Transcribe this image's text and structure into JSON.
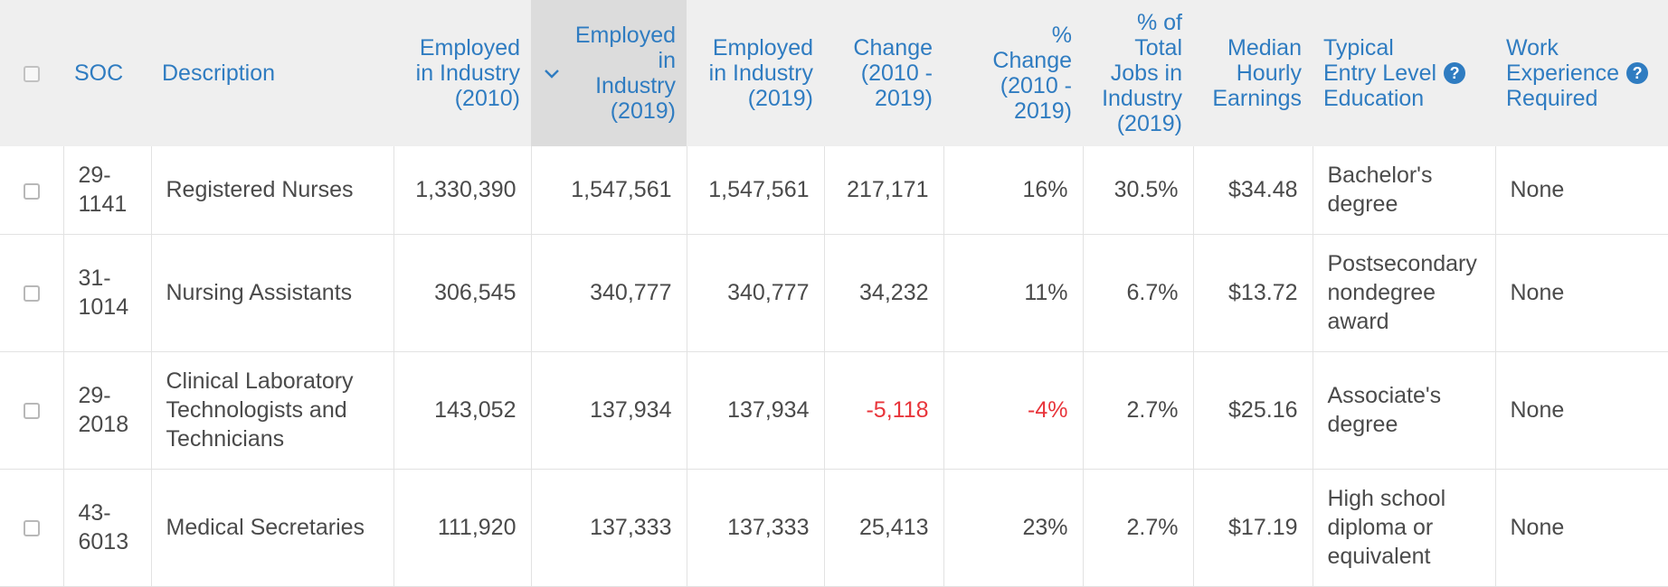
{
  "header": {
    "soc": "SOC",
    "description": "Description",
    "emp2010": [
      "Employed",
      "in Industry",
      "(2010)"
    ],
    "emp2019_sorted": [
      "Employed",
      "in",
      "Industry",
      "(2019)"
    ],
    "emp2019": [
      "Employed",
      "in Industry",
      "(2019)"
    ],
    "change": [
      "Change",
      "(2010 -",
      "2019)"
    ],
    "pct_change": [
      "%",
      "Change",
      "(2010 -",
      "2019)"
    ],
    "pct_total": [
      "% of",
      "Total",
      "Jobs in",
      "Industry",
      "(2019)"
    ],
    "median": [
      "Median",
      "Hourly",
      "Earnings"
    ],
    "education": [
      "Typical",
      "Entry Level",
      "Education"
    ],
    "experience": [
      "Work",
      "Experience",
      "Required"
    ],
    "help_glyph": "?",
    "sort_icon": "chevron-down-icon",
    "help_icon": "question-circle-icon"
  },
  "colors": {
    "header_text": "#2f7cc1",
    "header_bg": "#efefef",
    "sorted_bg": "#dcdcdc",
    "negative": "#e8343a",
    "body_text": "#4a4a4a"
  },
  "rows": [
    {
      "soc": [
        "29-",
        "1141"
      ],
      "description": [
        "Registered Nurses"
      ],
      "emp2010": "1,330,390",
      "emp2019_sorted": "1,547,561",
      "emp2019": "1,547,561",
      "change": "217,171",
      "pct_change": "16%",
      "pct_total": "30.5%",
      "median": "$34.48",
      "education": [
        "Bachelor's",
        "degree"
      ],
      "experience": "None"
    },
    {
      "soc": [
        "31-",
        "1014"
      ],
      "description": [
        "Nursing Assistants"
      ],
      "emp2010": "306,545",
      "emp2019_sorted": "340,777",
      "emp2019": "340,777",
      "change": "34,232",
      "pct_change": "11%",
      "pct_total": "6.7%",
      "median": "$13.72",
      "education": [
        "Postsecondary",
        "nondegree",
        "award"
      ],
      "experience": "None"
    },
    {
      "soc": [
        "29-",
        "2018"
      ],
      "description": [
        "Clinical Laboratory",
        "Technologists and",
        "Technicians"
      ],
      "emp2010": "143,052",
      "emp2019_sorted": "137,934",
      "emp2019": "137,934",
      "change": "-5,118",
      "pct_change": "-4%",
      "pct_total": "2.7%",
      "median": "$25.16",
      "education": [
        "Associate's",
        "degree"
      ],
      "experience": "None"
    },
    {
      "soc": [
        "43-",
        "6013"
      ],
      "description": [
        "Medical Secretaries"
      ],
      "emp2010": "111,920",
      "emp2019_sorted": "137,333",
      "emp2019": "137,333",
      "change": "25,413",
      "pct_change": "23%",
      "pct_total": "2.7%",
      "median": "$17.19",
      "education": [
        "High school",
        "diploma or",
        "equivalent"
      ],
      "experience": "None"
    }
  ]
}
